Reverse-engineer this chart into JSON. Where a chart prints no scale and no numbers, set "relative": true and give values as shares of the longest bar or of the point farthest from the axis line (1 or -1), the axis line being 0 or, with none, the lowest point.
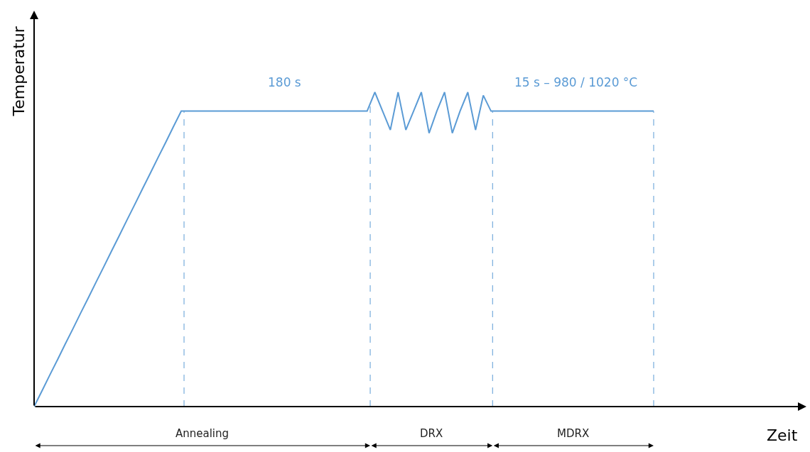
{
  "chart_data": {
    "type": "line",
    "relative": true,
    "ylabel": "Temperatur",
    "categories": [
      null,
      null,
      null,
      null,
      null,
      null,
      null,
      null,
      null,
      null,
      null,
      null,
      null,
      null,
      null,
      null,
      null,
      null,
      null,
      null,
      null,
      null,
      null,
      null,
      null,
      null,
      null,
      null,
      null,
      null,
      null,
      null,
      null,
      null,
      null,
      null,
      null,
      null,
      null,
      null,
      null,
      null,
      null,
      null,
      null,
      null,
      null,
      null,
      null,
      null,
      null,
      null,
      null,
      null,
      null,
      null,
      null,
      null,
      null,
      null,
      null,
      null,
      null,
      null,
      null,
      null,
      null,
      null,
      null,
      null,
      null,
      null,
      null,
      null,
      null,
      null,
      null,
      null,
      null,
      null,
      null
    ],
    "series": [
      {
        "color": "#5b9bd5",
        "values": [
          0,
          0.049,
          0.099,
          0.148,
          0.198,
          0.247,
          0.297,
          0.346,
          0.396,
          0.445,
          0.495,
          0.544,
          0.594,
          0.643,
          0.693,
          0.742,
          0.792,
          0.841,
          0.891,
          0.94,
          0.94,
          0.94,
          0.94,
          0.94,
          0.94,
          0.94,
          0.94,
          0.94,
          0.94,
          0.94,
          0.94,
          0.94,
          0.94,
          0.94,
          0.94,
          0.94,
          0.94,
          0.94,
          0.94,
          0.94,
          0.94,
          0.94,
          0.94,
          0.94,
          1,
          0.94,
          0.88,
          1,
          0.88,
          0.94,
          1,
          0.87,
          0.94,
          1,
          0.87,
          0.94,
          1,
          0.88,
          0.99,
          0.94,
          0.94,
          0.94,
          0.94,
          0.94,
          0.94,
          0.94,
          0.94,
          0.94,
          0.94,
          0.94,
          0.94,
          0.94,
          0.94,
          0.94,
          0.94,
          0.94,
          0.94,
          0.94,
          0.94,
          0.94,
          0.94
        ]
      }
    ],
    "tick_labels": false,
    "marker": "none",
    "line_style": "solid",
    "annotations": [
      "180 s",
      "15 s – 980 / 1020 °C",
      "Annealing",
      "DRX",
      "MDRX",
      "Zeit"
    ]
  }
}
